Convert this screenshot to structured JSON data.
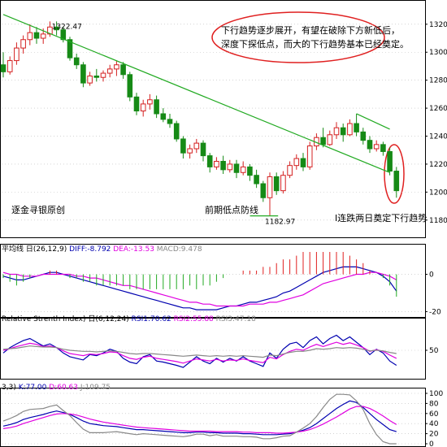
{
  "chart_data": [
    {
      "type": "candlestick",
      "title": "",
      "ylim": [
        1170,
        1335
      ],
      "yticks": [
        1180,
        1200,
        1220,
        1240,
        1260,
        1280,
        1300,
        1320
      ],
      "up_color": "#d42020",
      "down_color": "#168a16",
      "candles": [
        [
          1291,
          1300,
          1282,
          1286
        ],
        [
          1286,
          1297,
          1284,
          1294
        ],
        [
          1294,
          1307,
          1291,
          1303
        ],
        [
          1303,
          1312,
          1299,
          1309
        ],
        [
          1309,
          1320,
          1305,
          1314
        ],
        [
          1314,
          1318,
          1306,
          1310
        ],
        [
          1310,
          1317,
          1306,
          1313
        ],
        [
          1313,
          1322,
          1311,
          1318
        ],
        [
          1318,
          1322,
          1312,
          1316
        ],
        [
          1316,
          1318,
          1307,
          1309
        ],
        [
          1309,
          1311,
          1294,
          1296
        ],
        [
          1296,
          1299,
          1288,
          1291
        ],
        [
          1291,
          1293,
          1275,
          1278
        ],
        [
          1278,
          1286,
          1276,
          1283
        ],
        [
          1283,
          1288,
          1279,
          1282
        ],
        [
          1282,
          1287,
          1279,
          1285
        ],
        [
          1285,
          1291,
          1282,
          1288
        ],
        [
          1288,
          1294,
          1283,
          1291
        ],
        [
          1291,
          1293,
          1281,
          1284
        ],
        [
          1284,
          1286,
          1265,
          1268
        ],
        [
          1268,
          1271,
          1255,
          1258
        ],
        [
          1258,
          1266,
          1254,
          1263
        ],
        [
          1263,
          1270,
          1259,
          1266
        ],
        [
          1266,
          1269,
          1253,
          1256
        ],
        [
          1256,
          1260,
          1250,
          1252
        ],
        [
          1252,
          1256,
          1246,
          1249
        ],
        [
          1249,
          1251,
          1236,
          1238
        ],
        [
          1238,
          1240,
          1224,
          1228
        ],
        [
          1228,
          1234,
          1224,
          1231
        ],
        [
          1231,
          1238,
          1228,
          1235
        ],
        [
          1235,
          1237,
          1222,
          1226
        ],
        [
          1226,
          1228,
          1214,
          1218
        ],
        [
          1218,
          1225,
          1216,
          1222
        ],
        [
          1222,
          1226,
          1213,
          1216
        ],
        [
          1216,
          1223,
          1214,
          1220
        ],
        [
          1220,
          1223,
          1210,
          1214
        ],
        [
          1214,
          1222,
          1212,
          1218
        ],
        [
          1218,
          1220,
          1208,
          1212
        ],
        [
          1212,
          1216,
          1203,
          1206
        ],
        [
          1206,
          1208,
          1193,
          1196
        ],
        [
          1196,
          1214,
          1183,
          1211
        ],
        [
          1211,
          1214,
          1198,
          1201
        ],
        [
          1201,
          1215,
          1199,
          1212
        ],
        [
          1212,
          1222,
          1210,
          1219
        ],
        [
          1219,
          1227,
          1216,
          1224
        ],
        [
          1224,
          1228,
          1215,
          1218
        ],
        [
          1218,
          1236,
          1216,
          1233
        ],
        [
          1233,
          1242,
          1230,
          1239
        ],
        [
          1239,
          1246,
          1232,
          1234
        ],
        [
          1234,
          1244,
          1233,
          1241
        ],
        [
          1241,
          1250,
          1238,
          1246
        ],
        [
          1246,
          1249,
          1236,
          1241
        ],
        [
          1241,
          1252,
          1240,
          1249
        ],
        [
          1249,
          1256,
          1240,
          1243
        ],
        [
          1243,
          1246,
          1234,
          1237
        ],
        [
          1237,
          1240,
          1228,
          1231
        ],
        [
          1231,
          1237,
          1229,
          1234
        ],
        [
          1234,
          1236,
          1226,
          1229
        ],
        [
          1229,
          1232,
          1212,
          1215
        ],
        [
          1215,
          1218,
          1196,
          1201
        ]
      ],
      "trendlines": [
        {
          "from": [
            0,
            1327
          ],
          "to": [
            58,
            1214
          ]
        },
        {
          "from": [
            53,
            1256
          ],
          "to": [
            58,
            1245
          ]
        }
      ],
      "support_line": {
        "from": [
          38,
          1183
        ],
        "to": [
          41,
          1183
        ]
      },
      "price_labels": [
        {
          "text": "1322.47",
          "x": 8,
          "y": 1322.47
        },
        {
          "text": "1182.97",
          "x": 40,
          "y": 1182.97
        }
      ],
      "annotations": {
        "callout_line1": "下行趋势逐步展开，有望在破除下方新低后，",
        "callout_line2": "深度下探低点，而大的下行趋势基本已经奠定。",
        "bottom_left": "逐金寻银原创",
        "support_label": "前期低点防线",
        "right_label": "I连跌两日奠定下行趋势"
      }
    },
    {
      "type": "line",
      "title": "平均线 日(26,12,9) DIFF:-8.792 DEA:-13.53 MACD:9.478",
      "title_parts": [
        {
          "text": "平均线 日(26,12,9) ",
          "color": "#000000"
        },
        {
          "text": "DIFF:-8.792 ",
          "color": "#0000b0"
        },
        {
          "text": "DEA:-13.53 ",
          "color": "#e000e0"
        },
        {
          "text": "MACD:9.478",
          "color": "#888888"
        }
      ],
      "ylim": [
        -22,
        12
      ],
      "yticks": [
        0,
        -20
      ],
      "series": [
        {
          "name": "DIFF",
          "color": "#0000b0",
          "values": [
            -1,
            -2,
            -3,
            -3,
            -2,
            -1,
            0,
            1,
            1,
            0,
            -1,
            -2,
            -3,
            -4,
            -5,
            -6,
            -7,
            -8,
            -9,
            -10,
            -11,
            -12,
            -13,
            -14,
            -15,
            -16,
            -17,
            -18,
            -18,
            -19,
            -19,
            -19,
            -19,
            -18,
            -17,
            -17,
            -16,
            -15,
            -15,
            -14,
            -13,
            -12,
            -10,
            -9,
            -7,
            -5,
            -3,
            -1,
            1,
            2,
            3,
            4,
            4,
            4,
            3,
            2,
            1,
            -1,
            -4,
            -9
          ]
        },
        {
          "name": "DEA",
          "color": "#e000e0",
          "values": [
            1,
            0,
            0,
            -1,
            -1,
            -1,
            0,
            0,
            0,
            0,
            0,
            -1,
            -1,
            -2,
            -2,
            -3,
            -4,
            -5,
            -6,
            -6,
            -7,
            -8,
            -9,
            -10,
            -11,
            -12,
            -13,
            -14,
            -15,
            -15,
            -16,
            -16,
            -17,
            -17,
            -17,
            -17,
            -17,
            -16,
            -16,
            -16,
            -15,
            -15,
            -14,
            -13,
            -12,
            -11,
            -9,
            -7,
            -5,
            -4,
            -3,
            -2,
            -1,
            0,
            0,
            1,
            1,
            0,
            -1,
            -3
          ]
        },
        {
          "name": "MACD",
          "color": "#888888",
          "values": [
            -2,
            -4,
            -6,
            -4,
            -2,
            0,
            0,
            2,
            2,
            0,
            -2,
            -2,
            -4,
            -4,
            -6,
            -6,
            -6,
            -6,
            -6,
            -8,
            -8,
            -8,
            -8,
            -8,
            -8,
            -8,
            -8,
            -8,
            -6,
            -8,
            -6,
            -6,
            -4,
            -2,
            0,
            0,
            2,
            2,
            2,
            4,
            4,
            6,
            8,
            8,
            10,
            12,
            12,
            12,
            12,
            12,
            12,
            12,
            10,
            8,
            6,
            2,
            0,
            -2,
            -6,
            -12
          ]
        }
      ]
    },
    {
      "type": "line",
      "title": "Relative Strenth Index) 日(6,12,24) RSI1:70.62 RSI2:55.88 RSI3:47.18",
      "title_parts": [
        {
          "text": "Relative Strenth Index) 日(6,12,24) ",
          "color": "#000000"
        },
        {
          "text": "RSI1:70.62 ",
          "color": "#0000b0"
        },
        {
          "text": "RSI2:55.88 ",
          "color": "#e000e0"
        },
        {
          "text": "RSI3:47.18",
          "color": "#888888"
        }
      ],
      "ylim": [
        0,
        100
      ],
      "yticks": [
        50
      ],
      "series": [
        {
          "name": "RSI1",
          "color": "#0000b0",
          "values": [
            45,
            55,
            62,
            68,
            72,
            65,
            58,
            62,
            55,
            45,
            38,
            35,
            32,
            42,
            40,
            45,
            52,
            48,
            35,
            28,
            25,
            38,
            42,
            30,
            28,
            25,
            22,
            18,
            28,
            38,
            30,
            25,
            35,
            28,
            35,
            30,
            38,
            30,
            25,
            20,
            45,
            35,
            52,
            62,
            65,
            55,
            68,
            75,
            62,
            72,
            78,
            68,
            75,
            65,
            55,
            42,
            52,
            45,
            30,
            22
          ]
        },
        {
          "name": "RSI2",
          "color": "#e000e0",
          "values": [
            50,
            53,
            57,
            60,
            63,
            61,
            57,
            58,
            55,
            49,
            44,
            42,
            40,
            43,
            42,
            44,
            47,
            46,
            40,
            35,
            33,
            37,
            39,
            35,
            33,
            31,
            29,
            26,
            30,
            34,
            32,
            30,
            33,
            30,
            32,
            31,
            34,
            31,
            29,
            27,
            37,
            34,
            42,
            48,
            52,
            50,
            56,
            61,
            57,
            61,
            65,
            61,
            64,
            60,
            55,
            48,
            51,
            48,
            41,
            35
          ]
        },
        {
          "name": "RSI3",
          "color": "#888888",
          "values": [
            52,
            53,
            54,
            56,
            58,
            57,
            56,
            56,
            55,
            52,
            50,
            49,
            48,
            48,
            47,
            48,
            49,
            48,
            46,
            44,
            43,
            44,
            44,
            43,
            42,
            41,
            40,
            39,
            40,
            41,
            40,
            39,
            40,
            39,
            40,
            39,
            40,
            39,
            38,
            37,
            41,
            40,
            43,
            46,
            48,
            48,
            50,
            53,
            52,
            53,
            55,
            54,
            55,
            54,
            52,
            49,
            50,
            49,
            46,
            44
          ]
        }
      ]
    },
    {
      "type": "line",
      "title": "3,3) K:77.00 D:60.63 J:109.75",
      "title_parts": [
        {
          "text": "3,3) ",
          "color": "#000000"
        },
        {
          "text": "K:77.00 ",
          "color": "#0000b0"
        },
        {
          "text": "D:60.63 ",
          "color": "#e000e0"
        },
        {
          "text": "J:109.75",
          "color": "#888888"
        }
      ],
      "ylim": [
        0,
        100
      ],
      "yticks": [
        100,
        80,
        60,
        40,
        20,
        0
      ],
      "series": [
        {
          "name": "K",
          "color": "#0000b0",
          "values": [
            35,
            38,
            42,
            48,
            52,
            55,
            58,
            62,
            65,
            62,
            58,
            52,
            45,
            40,
            38,
            36,
            35,
            34,
            32,
            30,
            28,
            28,
            27,
            26,
            25,
            24,
            23,
            22,
            22,
            23,
            23,
            22,
            22,
            21,
            21,
            21,
            20,
            20,
            19,
            18,
            18,
            18,
            19,
            20,
            23,
            27,
            32,
            40,
            50,
            60,
            70,
            78,
            85,
            82,
            72,
            60,
            48,
            38,
            28,
            24
          ]
        },
        {
          "name": "D",
          "color": "#e000e0",
          "values": [
            30,
            32,
            35,
            40,
            44,
            48,
            52,
            56,
            59,
            60,
            59,
            57,
            53,
            49,
            46,
            43,
            41,
            39,
            37,
            35,
            33,
            32,
            31,
            30,
            29,
            28,
            27,
            26,
            25,
            25,
            25,
            25,
            24,
            24,
            24,
            24,
            23,
            23,
            22,
            22,
            22,
            21,
            21,
            22,
            23,
            25,
            28,
            33,
            39,
            46,
            53,
            61,
            69,
            74,
            74,
            70,
            63,
            55,
            46,
            38
          ]
        },
        {
          "name": "J",
          "color": "#888888",
          "values": [
            45,
            50,
            56,
            64,
            68,
            69,
            70,
            74,
            77,
            66,
            56,
            42,
            29,
            22,
            22,
            22,
            23,
            24,
            22,
            20,
            18,
            20,
            19,
            18,
            17,
            16,
            15,
            14,
            16,
            19,
            19,
            16,
            18,
            15,
            15,
            15,
            14,
            14,
            13,
            10,
            10,
            12,
            15,
            16,
            23,
            31,
            40,
            54,
            72,
            88,
            98,
            98,
            97,
            85,
            68,
            40,
            18,
            4,
            0,
            0
          ]
        }
      ]
    }
  ]
}
